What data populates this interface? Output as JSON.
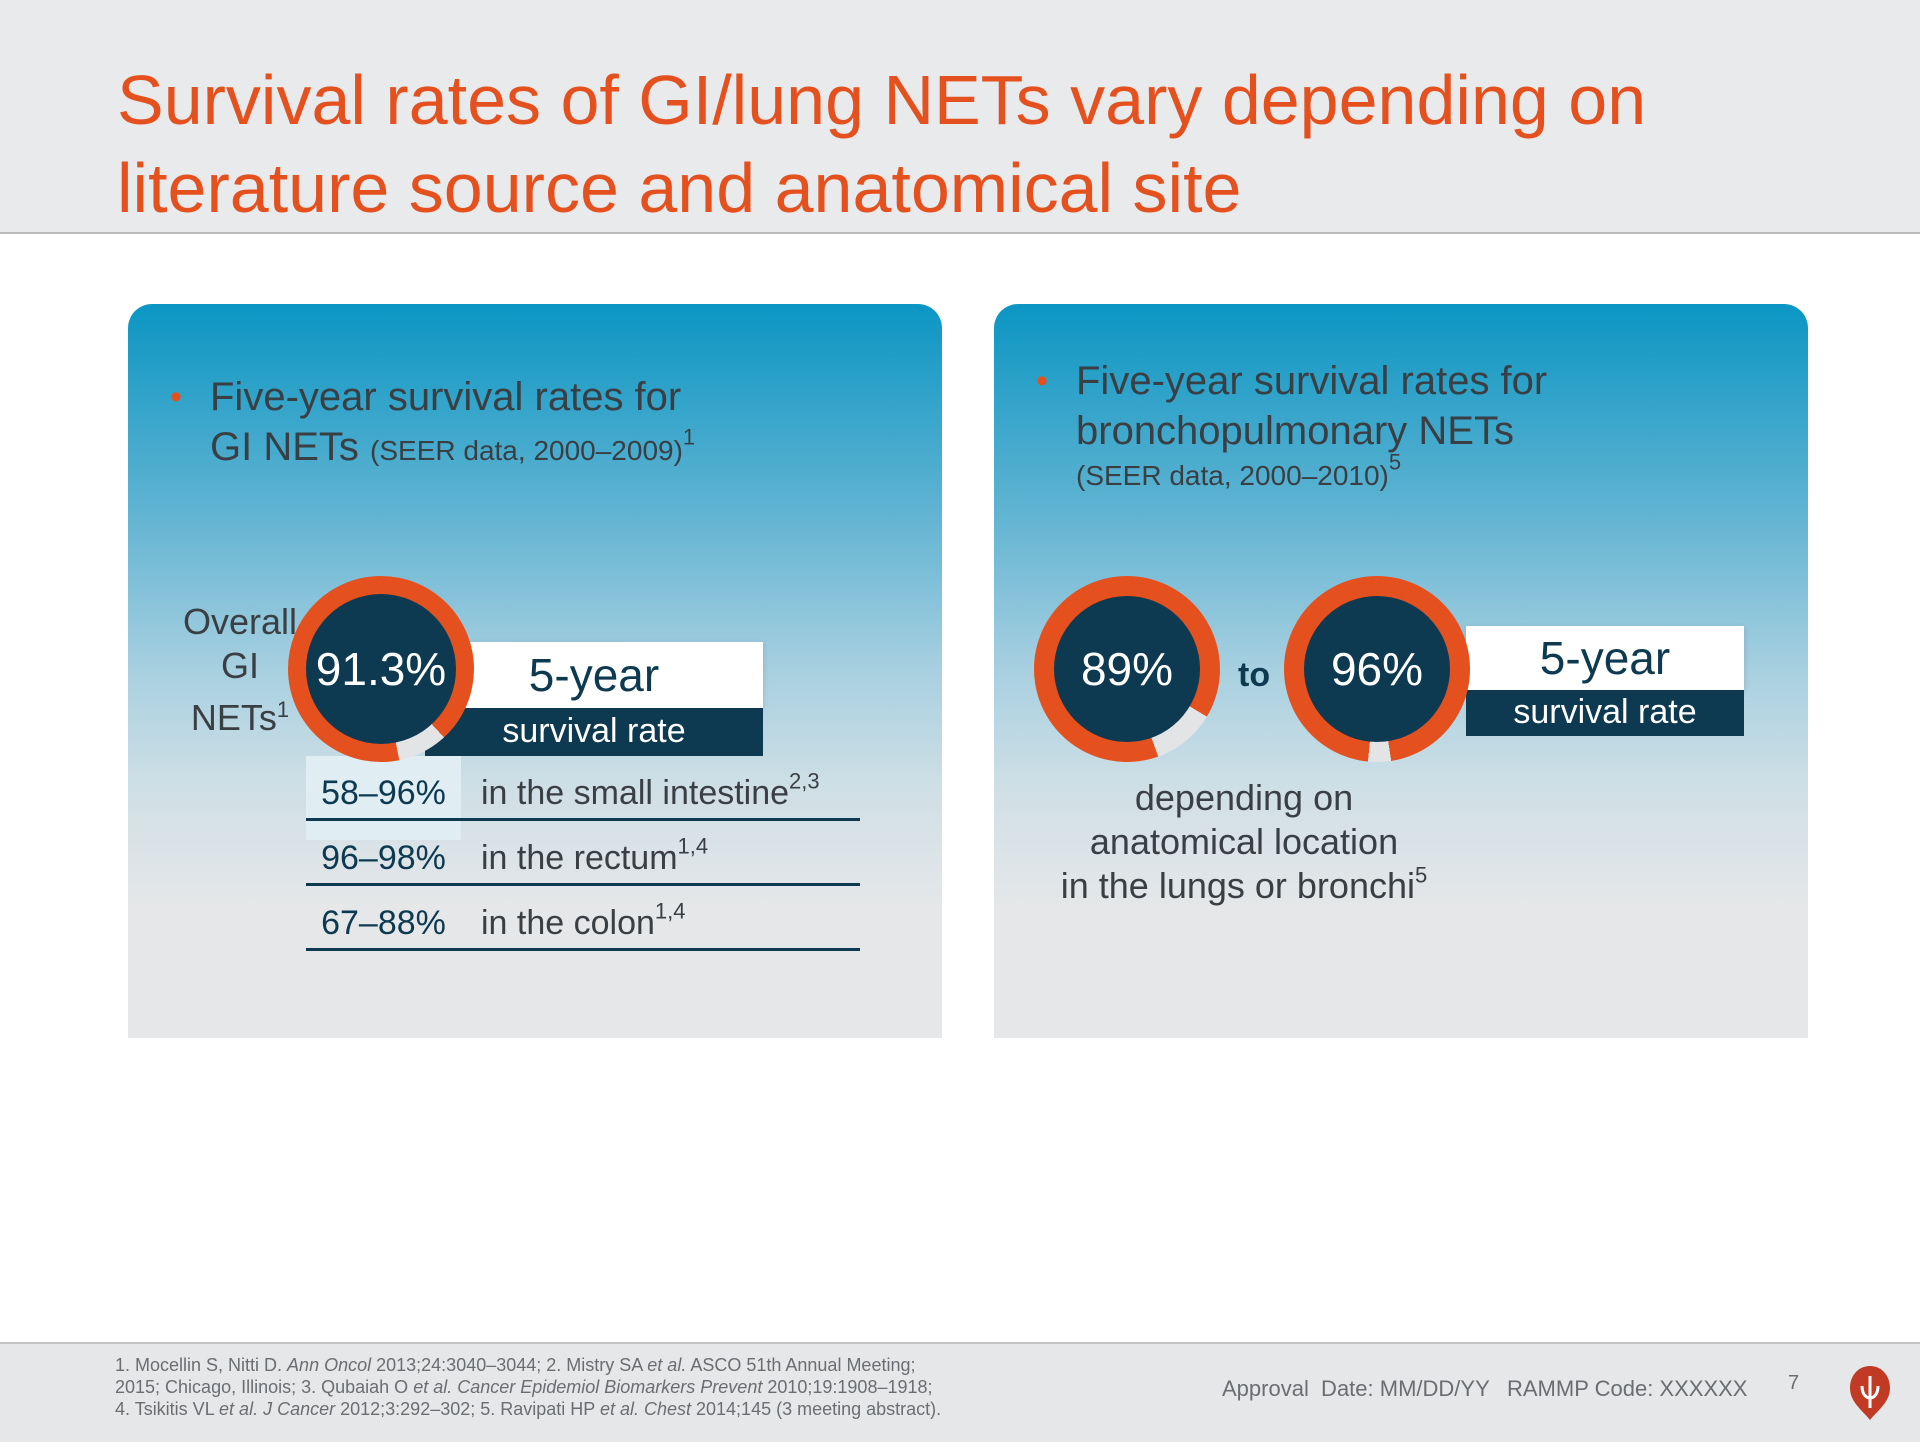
{
  "slide": {
    "title_line1": "Survival rates of GI/lung NETs vary depending on",
    "title_line2": "literature source and anatomical site",
    "accent_color": "#e4511f",
    "navy_color": "#0e3a51"
  },
  "left_panel": {
    "bullet_line1": "Five-year survival rates for",
    "bullet_line2_main": "GI NETs",
    "bullet_line2_small": "(SEER data, 2000–2009)",
    "bullet_line2_sup": "1",
    "overall_line1": "Overall",
    "overall_line2": "GI",
    "overall_line3": "NETs",
    "overall_sup": "1",
    "ring_value": "91.3%",
    "ring_fraction": 0.913,
    "badge_top": "5-year",
    "badge_bottom": "survival rate",
    "rows": [
      {
        "range": "58–96%",
        "site": "in the small intestine",
        "sup": "2,3"
      },
      {
        "range": "96–98%",
        "site": "in the rectum",
        "sup": "1,4"
      },
      {
        "range": "67–88%",
        "site": "in the colon",
        "sup": "1,4"
      }
    ]
  },
  "right_panel": {
    "bullet_line1": "Five-year survival rates for",
    "bullet_line2": "bronchopulmonary NETs",
    "bullet_line3": "(SEER data, 2000–2010)",
    "bullet_line3_sup": "5",
    "ring1_value": "89%",
    "ring1_fraction": 0.89,
    "to_label": "to",
    "ring2_value": "96%",
    "ring2_fraction": 0.96,
    "badge_top": "5-year",
    "badge_bottom": "survival rate",
    "depending_line1": "depending on",
    "depending_line2": "anatomical location",
    "depending_line3": "in the lungs or bronchi",
    "depending_sup": "5"
  },
  "footer": {
    "ref_line1_a": "1. Mocellin S, Nitti D. ",
    "ref_line1_b": "Ann Oncol",
    "ref_line1_c": " 2013;24:3040–3044; 2. Mistry SA ",
    "ref_line1_d": "et al.",
    "ref_line1_e": " ASCO 51th Annual Meeting;",
    "ref_line2_a": "2015; Chicago, Illinois; 3. Qubaiah O ",
    "ref_line2_b": "et al. Cancer Epidemiol Biomarkers Prevent",
    "ref_line2_c": " 2010;19:1908–1918;",
    "ref_line3_a": "4. Tsikitis VL ",
    "ref_line3_b": "et al. J Cancer",
    "ref_line3_c": " 2012;3:292–302; 5. Ravipati HP ",
    "ref_line3_d": "et al. Chest",
    "ref_line3_e": " 2014;145 (3 meeting abstract).",
    "approval": "Approval  Date: MM/DD/YY",
    "rammp": "RAMMP Code: XXXXXX",
    "page_number": "7"
  }
}
